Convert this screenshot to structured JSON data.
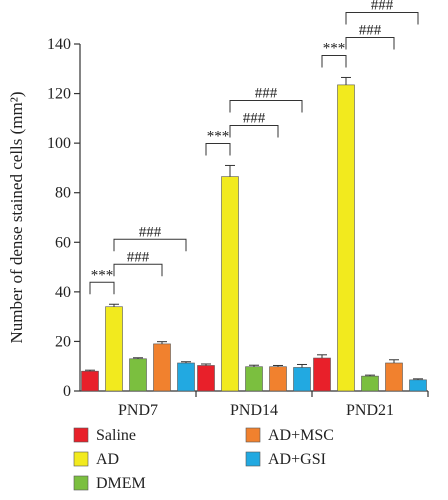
{
  "chart_data": {
    "type": "bar",
    "title": "",
    "xlabel": "",
    "ylabel": "Number of dense stained cells (mm²)",
    "ylim": [
      0,
      140
    ],
    "yticks": [
      0,
      20,
      40,
      60,
      80,
      100,
      120,
      140
    ],
    "grid": false,
    "legend_position": "bottom",
    "categories": [
      "PND7",
      "PND14",
      "PND21"
    ],
    "series": [
      {
        "name": "Saline",
        "color": "#e8202a",
        "values": [
          8,
          10.3,
          13.3
        ],
        "errors": [
          0.4,
          0.6,
          1.3
        ]
      },
      {
        "name": "AD",
        "color": "#f2ea1e",
        "values": [
          34,
          86.5,
          123.5
        ],
        "errors": [
          1.0,
          4.5,
          3.0
        ]
      },
      {
        "name": "DMEM",
        "color": "#7bbf3f",
        "values": [
          13,
          9.8,
          6
        ],
        "errors": [
          0.4,
          0.6,
          0.4
        ]
      },
      {
        "name": "AD+MSC",
        "color": "#f1812e",
        "values": [
          19,
          9.8,
          11.3
        ],
        "errors": [
          0.9,
          0.5,
          1.3
        ]
      },
      {
        "name": "AD+GSI",
        "color": "#22a9e1",
        "values": [
          11.3,
          9.5,
          4.5
        ],
        "errors": [
          0.5,
          1.2,
          0.4
        ]
      }
    ],
    "annotations": [
      {
        "group": "PND7",
        "label": "***",
        "from": "Saline",
        "to": "AD"
      },
      {
        "group": "PND7",
        "label": "###",
        "from": "AD",
        "to": "AD+MSC"
      },
      {
        "group": "PND7",
        "label": "###",
        "from": "AD",
        "to": "AD+GSI"
      },
      {
        "group": "PND14",
        "label": "***",
        "from": "Saline",
        "to": "AD"
      },
      {
        "group": "PND14",
        "label": "###",
        "from": "AD",
        "to": "AD+MSC"
      },
      {
        "group": "PND14",
        "label": "###",
        "from": "AD",
        "to": "AD+GSI"
      },
      {
        "group": "PND21",
        "label": "***",
        "from": "Saline",
        "to": "AD"
      },
      {
        "group": "PND21",
        "label": "###",
        "from": "AD",
        "to": "AD+MSC"
      },
      {
        "group": "PND21",
        "label": "###",
        "from": "AD",
        "to": "AD+GSI"
      }
    ]
  }
}
